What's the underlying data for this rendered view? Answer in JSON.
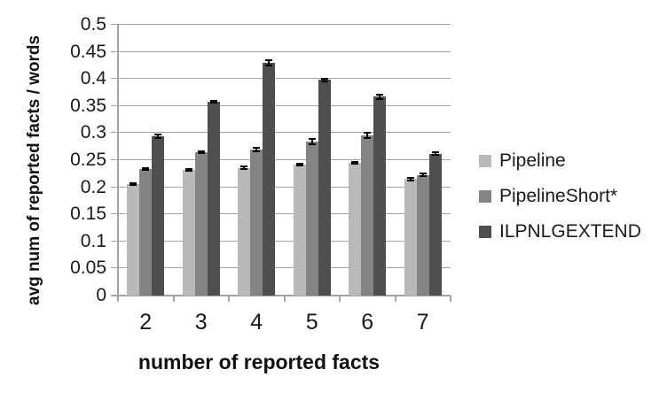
{
  "chart_data": {
    "type": "bar",
    "title": "",
    "xlabel": "number of reported facts",
    "ylabel": "avg num of reported facts / words",
    "categories": [
      "2",
      "3",
      "4",
      "5",
      "6",
      "7"
    ],
    "series": [
      {
        "name": "Pipeline",
        "color": "#b9b9b9",
        "values": [
          0.206,
          0.232,
          0.236,
          0.242,
          0.245,
          0.215
        ],
        "errors": [
          0.002,
          0.002,
          0.002,
          0.002,
          0.002,
          0.003
        ]
      },
      {
        "name": "PipelineShort*",
        "color": "#848484",
        "values": [
          0.234,
          0.265,
          0.27,
          0.284,
          0.296,
          0.223
        ],
        "errors": [
          0.002,
          0.002,
          0.003,
          0.005,
          0.005,
          0.002
        ]
      },
      {
        "name": "ILPNLGEXTEND",
        "color": "#4f4f4f",
        "values": [
          0.294,
          0.358,
          0.43,
          0.398,
          0.367,
          0.262
        ],
        "errors": [
          0.003,
          0.002,
          0.005,
          0.003,
          0.004,
          0.003
        ]
      }
    ],
    "ylim": [
      0,
      0.5
    ],
    "ytick_step": 0.05,
    "ytick_labels": [
      "0",
      "0.05",
      "0.1",
      "0.15",
      "0.2",
      "0.25",
      "0.3",
      "0.35",
      "0.4",
      "0.45",
      "0.5"
    ],
    "grid": true,
    "legend_position": "right",
    "gridline_color": "#a3a3a3",
    "error_bar_color": "#000000",
    "background_color": "#ffffff"
  }
}
